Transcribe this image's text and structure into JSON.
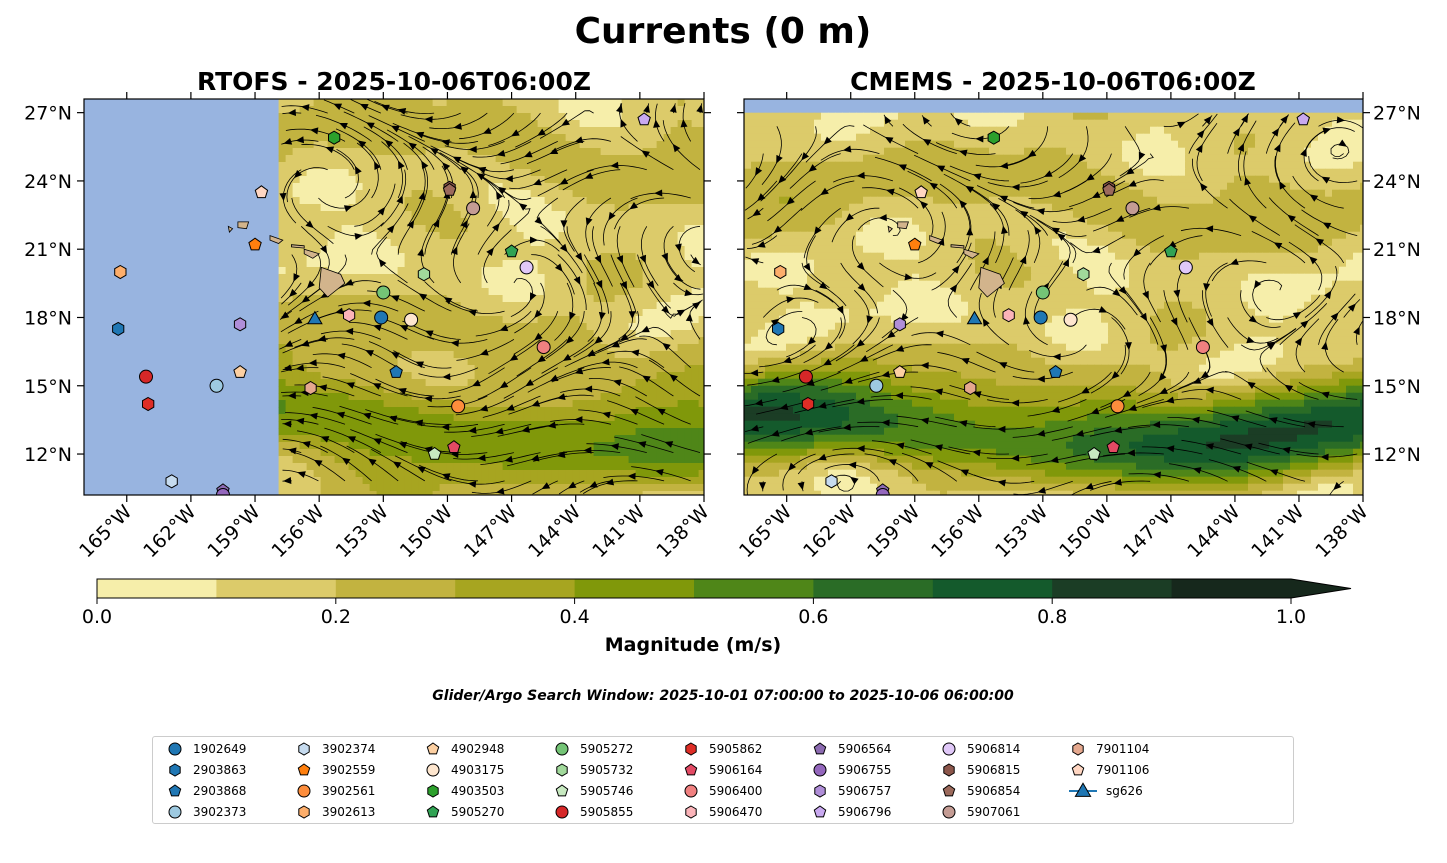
{
  "title": "Currents (0 m)",
  "search_window": "Glider/Argo Search Window: 2025-10-01 07:00:00 to 2025-10-06 06:00:00",
  "colors": {
    "ocean_mask": "#98b4e0",
    "land": "#d2b48c",
    "cmap": [
      "#f6eeaa",
      "#dccb6a",
      "#c2b340",
      "#a7a520",
      "#80980a",
      "#4f8618",
      "#2a6c26",
      "#145a2c",
      "#1b3d25",
      "#16281c"
    ]
  },
  "colorbar": {
    "label": "Magnitude (m/s)",
    "ticks": [
      "0.0",
      "0.2",
      "0.4",
      "0.6",
      "0.8",
      "1.0"
    ],
    "boundaries": [
      0,
      0.1,
      0.2,
      0.3,
      0.4,
      0.5,
      0.6,
      0.7,
      0.8,
      0.9,
      1.0
    ],
    "extend": "max"
  },
  "chart_data": [
    {
      "type": "heatmap",
      "title": "RTOFS - 2025-10-06T06:00Z",
      "variable": "surface current magnitude (m/s) with streamlines",
      "xlim": [
        -167,
        -138
      ],
      "ylim": [
        10.2,
        27.6
      ],
      "x_ticks": [
        -165,
        -162,
        -159,
        -156,
        -153,
        -150,
        -147,
        -144,
        -141,
        -138
      ],
      "x_tick_labels": [
        "165°W",
        "162°W",
        "159°W",
        "156°W",
        "153°W",
        "150°W",
        "147°W",
        "144°W",
        "141°W",
        "138°W"
      ],
      "y_ticks": [
        12,
        15,
        18,
        21,
        24,
        27
      ],
      "y_tick_labels": [
        "12°N",
        "15°N",
        "18°N",
        "21°N",
        "24°N",
        "27°N"
      ],
      "data_coverage": {
        "lon_min": -157.9,
        "lat_min": 10.2,
        "lat_max": 27.6
      }
    },
    {
      "type": "heatmap",
      "title": "CMEMS - 2025-10-06T06:00Z",
      "variable": "surface current magnitude (m/s) with streamlines",
      "xlim": [
        -167,
        -138
      ],
      "ylim": [
        10.2,
        27.6
      ],
      "x_ticks": [
        -165,
        -162,
        -159,
        -156,
        -153,
        -150,
        -147,
        -144,
        -141,
        -138
      ],
      "x_tick_labels": [
        "165°W",
        "162°W",
        "159°W",
        "156°W",
        "153°W",
        "150°W",
        "147°W",
        "144°W",
        "141°W",
        "138°W"
      ],
      "y_ticks": [
        12,
        15,
        18,
        21,
        24,
        27
      ],
      "y_tick_labels": [
        "12°N",
        "15°N",
        "18°N",
        "21°N",
        "24°N",
        "27°N"
      ],
      "data_coverage": {
        "lon_min": -167,
        "lat_min": 10.2,
        "lat_max": 27.0
      }
    }
  ],
  "platforms": [
    {
      "id": "1902649",
      "marker": "circle",
      "color": "#1f77b4",
      "lon": -153.1,
      "lat": 18.0
    },
    {
      "id": "2903863",
      "marker": "hexagon",
      "color": "#1f77b4",
      "lon": -165.4,
      "lat": 17.5
    },
    {
      "id": "2903868",
      "marker": "pentagon",
      "color": "#1f77b4",
      "lon": -152.4,
      "lat": 15.6
    },
    {
      "id": "3902373",
      "marker": "circle",
      "color": "#9ecae1",
      "lon": -160.8,
      "lat": 15.0
    },
    {
      "id": "3902374",
      "marker": "hexagon",
      "color": "#c6dbef",
      "lon": -162.9,
      "lat": 10.8
    },
    {
      "id": "3902559",
      "marker": "pentagon",
      "color": "#ff7f0e",
      "lon": -159.0,
      "lat": 21.2
    },
    {
      "id": "3902561",
      "marker": "circle",
      "color": "#fd8d3c",
      "lon": -149.5,
      "lat": 14.1
    },
    {
      "id": "3902613",
      "marker": "hexagon",
      "color": "#fdae6b",
      "lon": -165.3,
      "lat": 20.0
    },
    {
      "id": "4902948",
      "marker": "pentagon",
      "color": "#fdd0a2",
      "lon": -159.7,
      "lat": 15.6
    },
    {
      "id": "4903175",
      "marker": "circle",
      "color": "#fee6ce",
      "lon": -151.7,
      "lat": 17.9
    },
    {
      "id": "4903503",
      "marker": "hexagon",
      "color": "#2ca02c",
      "lon": -155.3,
      "lat": 25.9
    },
    {
      "id": "5905270",
      "marker": "pentagon",
      "color": "#31a354",
      "lon": -147.0,
      "lat": 20.9
    },
    {
      "id": "5905272",
      "marker": "circle",
      "color": "#74c476",
      "lon": -153.0,
      "lat": 19.1
    },
    {
      "id": "5905732",
      "marker": "hexagon",
      "color": "#a1d99b",
      "lon": -151.1,
      "lat": 19.9
    },
    {
      "id": "5905746",
      "marker": "pentagon",
      "color": "#c7e9c0",
      "lon": -150.6,
      "lat": 12.0
    },
    {
      "id": "5905855",
      "marker": "circle",
      "color": "#d62728",
      "lon": -164.1,
      "lat": 15.4
    },
    {
      "id": "5905862",
      "marker": "hexagon",
      "color": "#de2d26",
      "lon": -164.0,
      "lat": 14.2
    },
    {
      "id": "5906164",
      "marker": "pentagon",
      "color": "#e34a64",
      "lon": -149.7,
      "lat": 12.3
    },
    {
      "id": "5906400",
      "marker": "circle",
      "color": "#f08080",
      "lon": -145.5,
      "lat": 16.7
    },
    {
      "id": "5906470",
      "marker": "hexagon",
      "color": "#fbb4b9",
      "lon": -154.6,
      "lat": 18.1
    },
    {
      "id": "5906564",
      "marker": "pentagon",
      "color": "#8c6bb1",
      "lon": -160.5,
      "lat": 10.4
    },
    {
      "id": "5906755",
      "marker": "circle",
      "color": "#9467bd",
      "lon": -160.5,
      "lat": 10.2
    },
    {
      "id": "5906757",
      "marker": "hexagon",
      "color": "#b08ed8",
      "lon": -159.7,
      "lat": 17.7
    },
    {
      "id": "5906796",
      "marker": "pentagon",
      "color": "#c9a9f0",
      "lon": -140.8,
      "lat": 26.7
    },
    {
      "id": "5906814",
      "marker": "circle",
      "color": "#e0c8f8",
      "lon": -146.3,
      "lat": 20.2
    },
    {
      "id": "5906815",
      "marker": "hexagon",
      "color": "#8c564b",
      "lon": -149.9,
      "lat": 23.7
    },
    {
      "id": "5906854",
      "marker": "pentagon",
      "color": "#9c6a5c",
      "lon": -149.9,
      "lat": 23.6
    },
    {
      "id": "5907061",
      "marker": "circle",
      "color": "#c49c94",
      "lon": -148.8,
      "lat": 22.8
    },
    {
      "id": "7901104",
      "marker": "hexagon",
      "color": "#e5a88e",
      "lon": -156.4,
      "lat": 14.9
    },
    {
      "id": "7901106",
      "marker": "pentagon",
      "color": "#ffd6c2",
      "lon": -158.7,
      "lat": 23.5
    },
    {
      "id": "sg626",
      "marker": "triangle",
      "color": "#1f77b4",
      "lon": -156.2,
      "lat": 17.9
    }
  ],
  "islands": [
    {
      "name": "Hawaii",
      "points": [
        [
          -155.9,
          20.2
        ],
        [
          -155.0,
          19.9
        ],
        [
          -154.8,
          19.5
        ],
        [
          -155.6,
          18.9
        ],
        [
          -156.0,
          19.3
        ],
        [
          -155.9,
          20.2
        ]
      ]
    },
    {
      "name": "Maui",
      "points": [
        [
          -156.7,
          21.0
        ],
        [
          -156.0,
          20.8
        ],
        [
          -156.3,
          20.6
        ],
        [
          -156.7,
          20.8
        ]
      ]
    },
    {
      "name": "Molokai",
      "points": [
        [
          -157.3,
          21.2
        ],
        [
          -156.7,
          21.15
        ],
        [
          -156.7,
          21.05
        ],
        [
          -157.3,
          21.1
        ]
      ]
    },
    {
      "name": "Oahu",
      "points": [
        [
          -158.3,
          21.6
        ],
        [
          -157.7,
          21.4
        ],
        [
          -157.9,
          21.25
        ],
        [
          -158.3,
          21.4
        ]
      ]
    },
    {
      "name": "Kauai",
      "points": [
        [
          -159.8,
          22.2
        ],
        [
          -159.3,
          22.2
        ],
        [
          -159.4,
          21.9
        ],
        [
          -159.8,
          21.95
        ]
      ]
    },
    {
      "name": "Niihau",
      "points": [
        [
          -160.25,
          22.0
        ],
        [
          -160.05,
          21.9
        ],
        [
          -160.2,
          21.75
        ]
      ]
    }
  ]
}
